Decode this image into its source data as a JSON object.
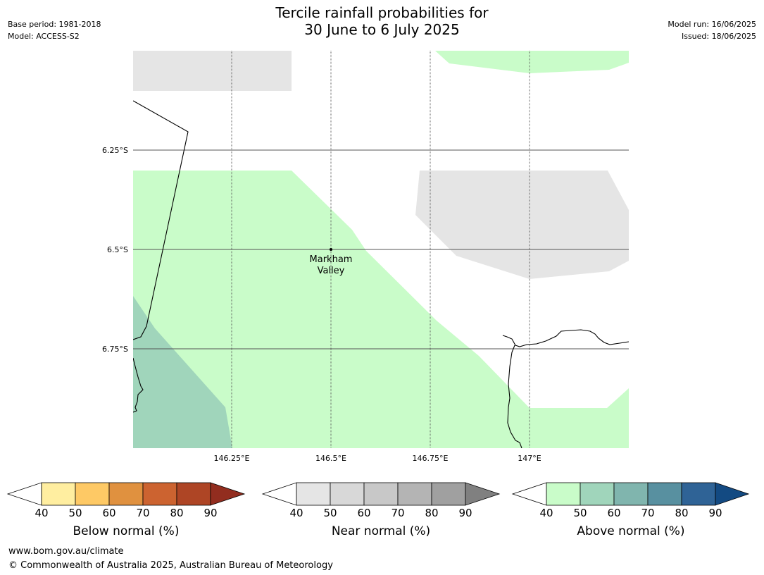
{
  "title_line1": "Tercile rainfall probabilities for",
  "title_line2": "30 June to 6 July 2025",
  "base_period": "Base period: 1981-2018",
  "model": "Model: ACCESS-S2",
  "model_run": "Model run: 16/06/2025",
  "issued": "Issued: 18/06/2025",
  "map": {
    "lat_labels": [
      "6.25°S",
      "6.5°S",
      "6.75°S"
    ],
    "lon_labels": [
      "146.25°E",
      "146.5°E",
      "146.75°E",
      "147°E"
    ],
    "place_line1": "Markham",
    "place_line2": "Valley"
  },
  "legend": {
    "below": {
      "label": "Below normal (%)",
      "colors": [
        "#ffffff",
        "#ffeea0",
        "#fec965",
        "#e0913f",
        "#cc6330",
        "#ae4525",
        "#922d1f"
      ]
    },
    "near": {
      "label": "Near normal (%)",
      "colors": [
        "#ffffff",
        "#e5e5e5",
        "#d8d8d8",
        "#c8c8c8",
        "#b4b4b4",
        "#a0a0a0",
        "#808080"
      ]
    },
    "above": {
      "label": "Above normal (%)",
      "colors": [
        "#ffffff",
        "#c9fcc9",
        "#a0d5bb",
        "#80b5ae",
        "#5890a0",
        "#2f6396",
        "#134a82"
      ]
    },
    "ticks": [
      "40",
      "50",
      "60",
      "70",
      "80",
      "90"
    ]
  },
  "footer_url": "www.bom.gov.au/climate",
  "footer_copyright": "© Commonwealth of Australia 2025, Australian Bureau of Meteorology"
}
